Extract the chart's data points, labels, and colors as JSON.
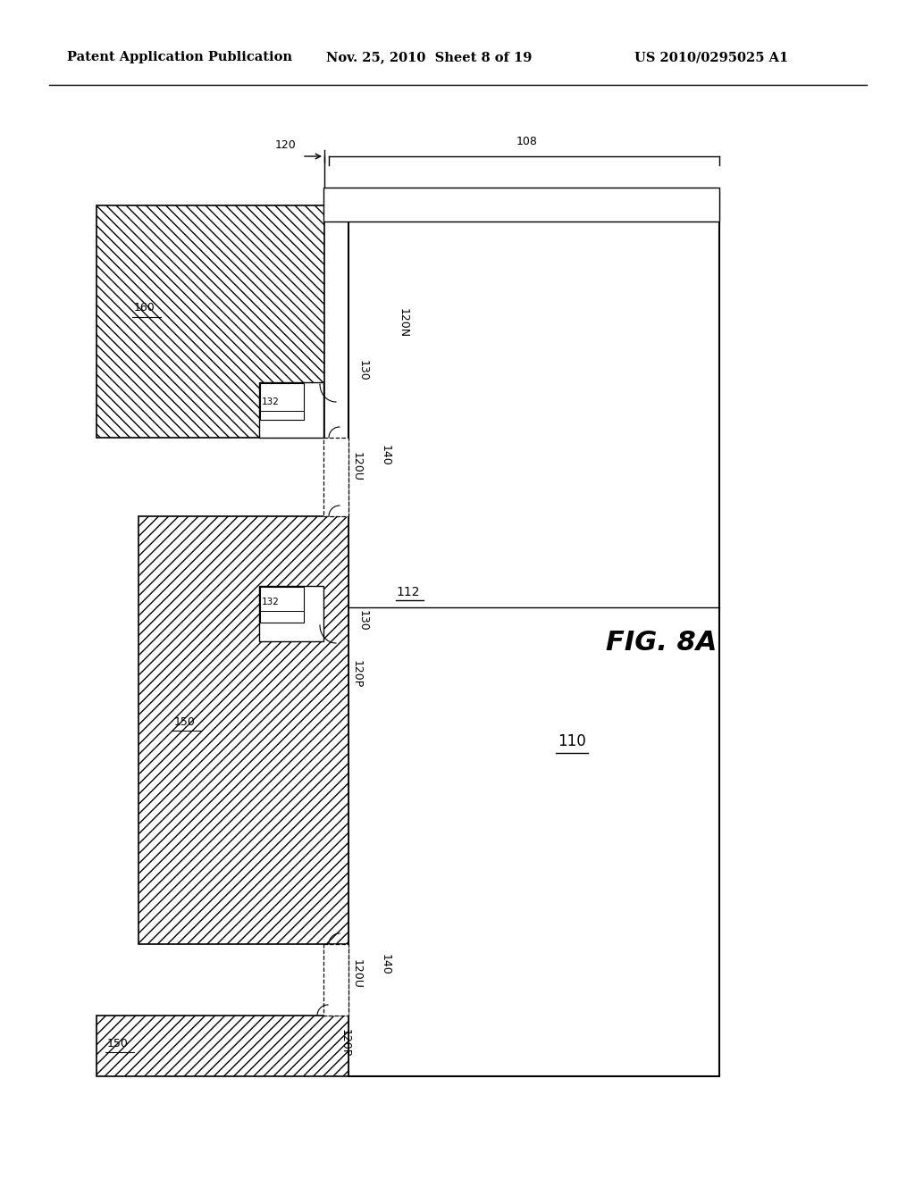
{
  "title_left": "Patent Application Publication",
  "title_mid": "Nov. 25, 2010  Sheet 8 of 19",
  "title_right": "US 2010/0295025 A1",
  "fig_label": "FIG. 8A",
  "bg_color": "#ffffff"
}
